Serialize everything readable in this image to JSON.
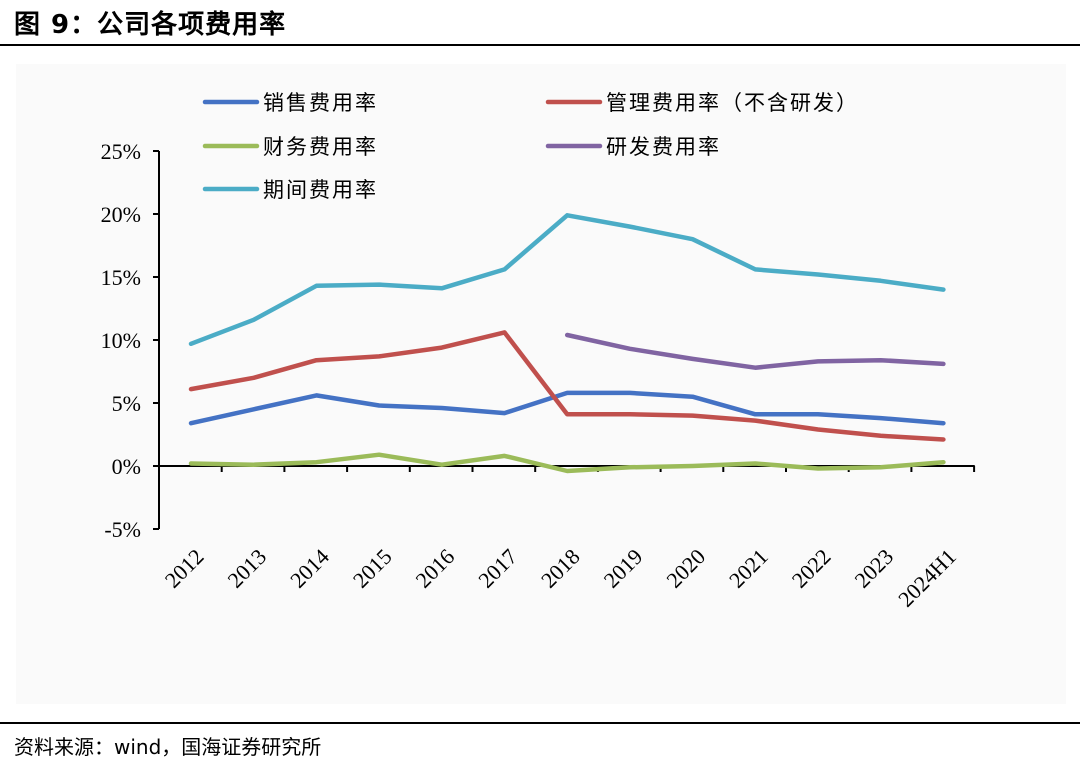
{
  "header": {
    "title": "图 9：公司各项费用率"
  },
  "footer": {
    "source": "资料来源：wind，国海证券研究所"
  },
  "chart_data": {
    "type": "line",
    "title": "公司各项费用率",
    "xlabel": "",
    "ylabel": "",
    "ylim": [
      -0.05,
      0.25
    ],
    "yticks": [
      -0.05,
      0,
      0.05,
      0.1,
      0.15,
      0.2,
      0.25
    ],
    "ytick_labels": [
      "-5%",
      "0%",
      "5%",
      "10%",
      "15%",
      "20%",
      "25%"
    ],
    "categories": [
      "2012",
      "2013",
      "2014",
      "2015",
      "2016",
      "2017",
      "2018",
      "2019",
      "2020",
      "2021",
      "2022",
      "2023",
      "2024H1"
    ],
    "legend_position": "top",
    "series": [
      {
        "name": "销售费用率",
        "color": "#4472c4",
        "values": [
          0.034,
          0.045,
          0.056,
          0.048,
          0.046,
          0.042,
          0.058,
          0.058,
          0.055,
          0.041,
          0.041,
          0.038,
          0.034
        ]
      },
      {
        "name": "管理费用率（不含研发）",
        "color": "#c0504d",
        "values": [
          0.061,
          0.07,
          0.084,
          0.087,
          0.094,
          0.106,
          0.041,
          0.041,
          0.04,
          0.036,
          0.029,
          0.024,
          0.021
        ]
      },
      {
        "name": "财务费用率",
        "color": "#9bbb59",
        "values": [
          0.002,
          0.001,
          0.003,
          0.009,
          0.001,
          0.008,
          -0.004,
          -0.001,
          0.0,
          0.002,
          -0.002,
          -0.001,
          0.003
        ]
      },
      {
        "name": "研发费用率",
        "color": "#8064a2",
        "values": [
          null,
          null,
          null,
          null,
          null,
          null,
          0.104,
          0.093,
          0.085,
          0.078,
          0.083,
          0.084,
          0.081
        ]
      },
      {
        "name": "期间费用率",
        "color": "#4bacc6",
        "values": [
          0.097,
          0.116,
          0.143,
          0.144,
          0.141,
          0.156,
          0.199,
          0.19,
          0.18,
          0.156,
          0.152,
          0.147,
          0.14
        ]
      }
    ]
  }
}
